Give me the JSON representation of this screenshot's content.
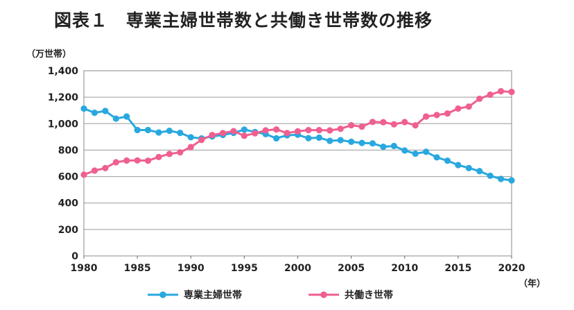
{
  "title": "図表１　専業主婦世帯数と共働き世帯数の推移",
  "chart_data": {
    "type": "line",
    "title": "図表１　専業主婦世帯数と共働き世帯数の推移",
    "ylabel": "（万世帯）",
    "xlabel": "（年）",
    "ylim": [
      0,
      1400
    ],
    "xlim": [
      1980,
      2020
    ],
    "y_ticks": [
      "0",
      "200",
      "400",
      "600",
      "800",
      "1,000",
      "1,200",
      "1,400"
    ],
    "y_tick_values": [
      0,
      200,
      400,
      600,
      800,
      1000,
      1200,
      1400
    ],
    "x_ticks": [
      "1980",
      "1985",
      "1990",
      "1995",
      "2000",
      "2005",
      "2010",
      "2015",
      "2020"
    ],
    "x_tick_values": [
      1980,
      1985,
      1990,
      1995,
      2000,
      2005,
      2010,
      2015,
      2020
    ],
    "grid": true,
    "legend_position": "bottom",
    "x": [
      1980,
      1981,
      1982,
      1983,
      1984,
      1985,
      1986,
      1987,
      1988,
      1989,
      1990,
      1991,
      1992,
      1993,
      1994,
      1995,
      1996,
      1997,
      1998,
      1999,
      2000,
      2001,
      2002,
      2003,
      2004,
      2005,
      2006,
      2007,
      2008,
      2009,
      2010,
      2011,
      2012,
      2013,
      2014,
      2015,
      2016,
      2017,
      2018,
      2019,
      2020
    ],
    "series": [
      {
        "name": "専業主婦世帯",
        "color": "#29a8df",
        "values": [
          1114,
          1082,
          1096,
          1038,
          1054,
          952,
          952,
          933,
          946,
          930,
          897,
          888,
          903,
          915,
          930,
          955,
          937,
          921,
          889,
          912,
          916,
          890,
          894,
          870,
          875,
          863,
          854,
          851,
          825,
          831,
          797,
          773,
          787,
          745,
          720,
          687,
          664,
          641,
          606,
          582,
          571
        ]
      },
      {
        "name": "共働き世帯",
        "color": "#ef5f8f",
        "values": [
          614,
          645,
          664,
          708,
          721,
          722,
          720,
          748,
          771,
          783,
          823,
          877,
          914,
          929,
          943,
          908,
          927,
          949,
          956,
          929,
          942,
          951,
          951,
          949,
          961,
          988,
          977,
          1013,
          1011,
          995,
          1012,
          987,
          1054,
          1065,
          1077,
          1114,
          1129,
          1188,
          1219,
          1245,
          1240
        ]
      }
    ]
  }
}
